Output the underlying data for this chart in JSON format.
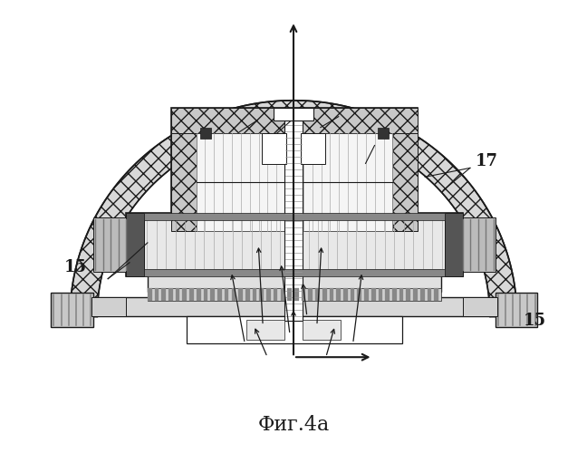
{
  "title": "Фиг.4а",
  "label_15_left": "15",
  "label_17_right": "17",
  "label_15_bottom": "15",
  "bg_color": "#ffffff",
  "line_color": "#1a1a1a"
}
